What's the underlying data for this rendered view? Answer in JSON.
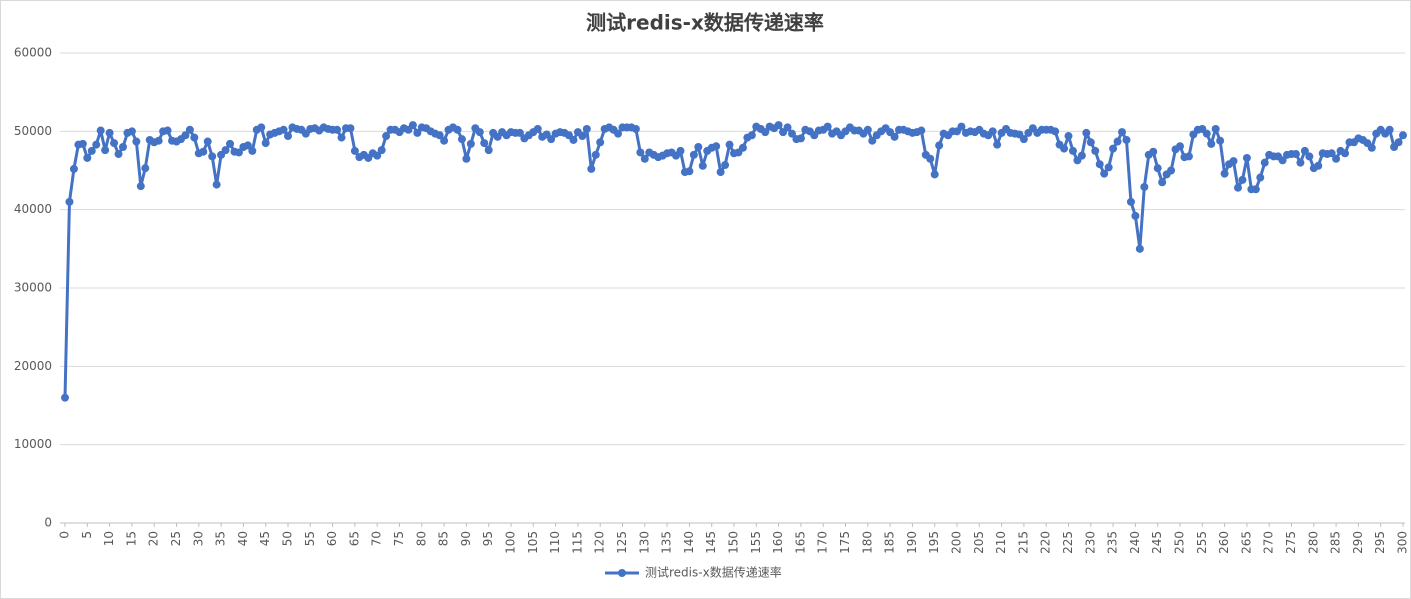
{
  "chart_data": {
    "type": "line",
    "title": "测试redis-x数据传递速率",
    "x": [
      0,
      1,
      2,
      3,
      4,
      5,
      6,
      7,
      8,
      9,
      10,
      11,
      12,
      13,
      14,
      15,
      16,
      17,
      18,
      19,
      20,
      21,
      22,
      23,
      24,
      25,
      26,
      27,
      28,
      29,
      30,
      31,
      32,
      33,
      34,
      35,
      36,
      37,
      38,
      39,
      40,
      41,
      42,
      43,
      44,
      45,
      46,
      47,
      48,
      49,
      50,
      51,
      52,
      53,
      54,
      55,
      56,
      57,
      58,
      59,
      60,
      61,
      62,
      63,
      64,
      65,
      66,
      67,
      68,
      69,
      70,
      71,
      72,
      73,
      74,
      75,
      76,
      77,
      78,
      79,
      80,
      81,
      82,
      83,
      84,
      85,
      86,
      87,
      88,
      89,
      90,
      91,
      92,
      93,
      94,
      95,
      96,
      97,
      98,
      99,
      100,
      101,
      102,
      103,
      104,
      105,
      106,
      107,
      108,
      109,
      110,
      111,
      112,
      113,
      114,
      115,
      116,
      117,
      118,
      119,
      120,
      121,
      122,
      123,
      124,
      125,
      126,
      127,
      128,
      129,
      130,
      131,
      132,
      133,
      134,
      135,
      136,
      137,
      138,
      139,
      140,
      141,
      142,
      143,
      144,
      145,
      146,
      147,
      148,
      149,
      150,
      151,
      152,
      153,
      154,
      155,
      156,
      157,
      158,
      159,
      160,
      161,
      162,
      163,
      164,
      165,
      166,
      167,
      168,
      169,
      170,
      171,
      172,
      173,
      174,
      175,
      176,
      177,
      178,
      179,
      180,
      181,
      182,
      183,
      184,
      185,
      186,
      187,
      188,
      189,
      190,
      191,
      192,
      193,
      194,
      195,
      196,
      197,
      198,
      199,
      200,
      201,
      202,
      203,
      204,
      205,
      206,
      207,
      208,
      209,
      210,
      211,
      212,
      213,
      214,
      215,
      216,
      217,
      218,
      219,
      220,
      221,
      222,
      223,
      224,
      225,
      226,
      227,
      228,
      229,
      230,
      231,
      232,
      233,
      234,
      235,
      236,
      237,
      238,
      239,
      240,
      241,
      242,
      243,
      244,
      245,
      246,
      247,
      248,
      249,
      250,
      251,
      252,
      253,
      254,
      255,
      256,
      257,
      258,
      259,
      260,
      261,
      262,
      263,
      264,
      265,
      266,
      267,
      268,
      269,
      270,
      271,
      272,
      273,
      274,
      275,
      276,
      277,
      278,
      279,
      280,
      281,
      282,
      283,
      284,
      285,
      286,
      287,
      288,
      289,
      290,
      291,
      292,
      293,
      294,
      295,
      296,
      297,
      298,
      299,
      300
    ],
    "series": [
      {
        "name": "测试redis-x数据传递速率",
        "color": "#4472c4",
        "values": [
          16000,
          41000,
          45200,
          48300,
          48400,
          46600,
          47500,
          48300,
          50100,
          47600,
          49800,
          48500,
          47100,
          48000,
          49800,
          50000,
          48700,
          43000,
          45300,
          48900,
          48600,
          48800,
          50000,
          50100,
          48800,
          48700,
          49000,
          49500,
          50200,
          49200,
          47200,
          47400,
          48700,
          46800,
          43200,
          47000,
          47600,
          48400,
          47400,
          47300,
          48000,
          48200,
          47500,
          50200,
          50500,
          48500,
          49600,
          49800,
          50000,
          50200,
          49400,
          50500,
          50300,
          50200,
          49700,
          50300,
          50400,
          50100,
          50500,
          50300,
          50200,
          50200,
          49200,
          50400,
          50400,
          47500,
          46700,
          47000,
          46600,
          47200,
          46900,
          47600,
          49400,
          50200,
          50200,
          49900,
          50400,
          50200,
          50800,
          49800,
          50500,
          50400,
          50000,
          49700,
          49500,
          48800,
          50200,
          50500,
          50200,
          49000,
          46500,
          48400,
          50400,
          49900,
          48500,
          47600,
          49800,
          49300,
          49900,
          49500,
          49900,
          49800,
          49800,
          49100,
          49500,
          49900,
          50300,
          49300,
          49600,
          49000,
          49700,
          49900,
          49800,
          49500,
          48900,
          49900,
          49400,
          50300,
          45200,
          47000,
          48600,
          50300,
          50500,
          50200,
          49700,
          50500,
          50500,
          50500,
          50300,
          47300,
          46500,
          47300,
          47000,
          46700,
          46900,
          47200,
          47300,
          46900,
          47500,
          44800,
          44900,
          47000,
          48000,
          45600,
          47500,
          47900,
          48100,
          44800,
          45700,
          48300,
          47200,
          47300,
          47900,
          49200,
          49500,
          50600,
          50300,
          49900,
          50600,
          50400,
          50800,
          49900,
          50500,
          49700,
          49000,
          49100,
          50200,
          50000,
          49500,
          50100,
          50200,
          50600,
          49700,
          50000,
          49500,
          50000,
          50500,
          50100,
          50100,
          49700,
          50200,
          48800,
          49500,
          50000,
          50400,
          49900,
          49300,
          50200,
          50200,
          50000,
          49800,
          49900,
          50100,
          47000,
          46500,
          44500,
          48200,
          49700,
          49500,
          50000,
          50000,
          50600,
          49800,
          50000,
          49900,
          50200,
          49700,
          49500,
          50000,
          48300,
          49800,
          50300,
          49800,
          49700,
          49600,
          49000,
          49800,
          50400,
          49800,
          50200,
          50200,
          50200,
          50000,
          48300,
          47800,
          49400,
          47500,
          46300,
          46900,
          49800,
          48600,
          47500,
          45800,
          44600,
          45400,
          47800,
          48700,
          49900,
          48900,
          41000,
          39200,
          35000,
          42900,
          47000,
          47400,
          45300,
          43500,
          44500,
          45000,
          47700,
          48100,
          46700,
          46800,
          49600,
          50200,
          50300,
          49700,
          48400,
          50300,
          48800,
          44600,
          45800,
          46200,
          42800,
          43800,
          46600,
          42600,
          42600,
          44100,
          46000,
          47000,
          46800,
          46800,
          46300,
          47000,
          47100,
          47100,
          46000,
          47500,
          46800,
          45300,
          45600,
          47200,
          47100,
          47200,
          46500,
          47500,
          47200,
          48600,
          48600,
          49100,
          48900,
          48500,
          47900,
          49700,
          50200,
          49700,
          50200,
          48000,
          48600,
          49500
        ]
      }
    ],
    "xlim": [
      0,
      300
    ],
    "xticks": [
      0,
      5,
      10,
      15,
      20,
      25,
      30,
      35,
      40,
      45,
      50,
      55,
      60,
      65,
      70,
      75,
      80,
      85,
      90,
      95,
      100,
      105,
      110,
      115,
      120,
      125,
      130,
      135,
      140,
      145,
      150,
      155,
      160,
      165,
      170,
      175,
      180,
      185,
      190,
      195,
      200,
      205,
      210,
      215,
      220,
      225,
      230,
      235,
      240,
      245,
      250,
      255,
      260,
      265,
      270,
      275,
      280,
      285,
      290,
      295,
      300
    ],
    "ylim": [
      0,
      60000
    ],
    "yticks": [
      0,
      10000,
      20000,
      30000,
      40000,
      50000,
      60000
    ],
    "grid": true,
    "legend": "bottom"
  }
}
